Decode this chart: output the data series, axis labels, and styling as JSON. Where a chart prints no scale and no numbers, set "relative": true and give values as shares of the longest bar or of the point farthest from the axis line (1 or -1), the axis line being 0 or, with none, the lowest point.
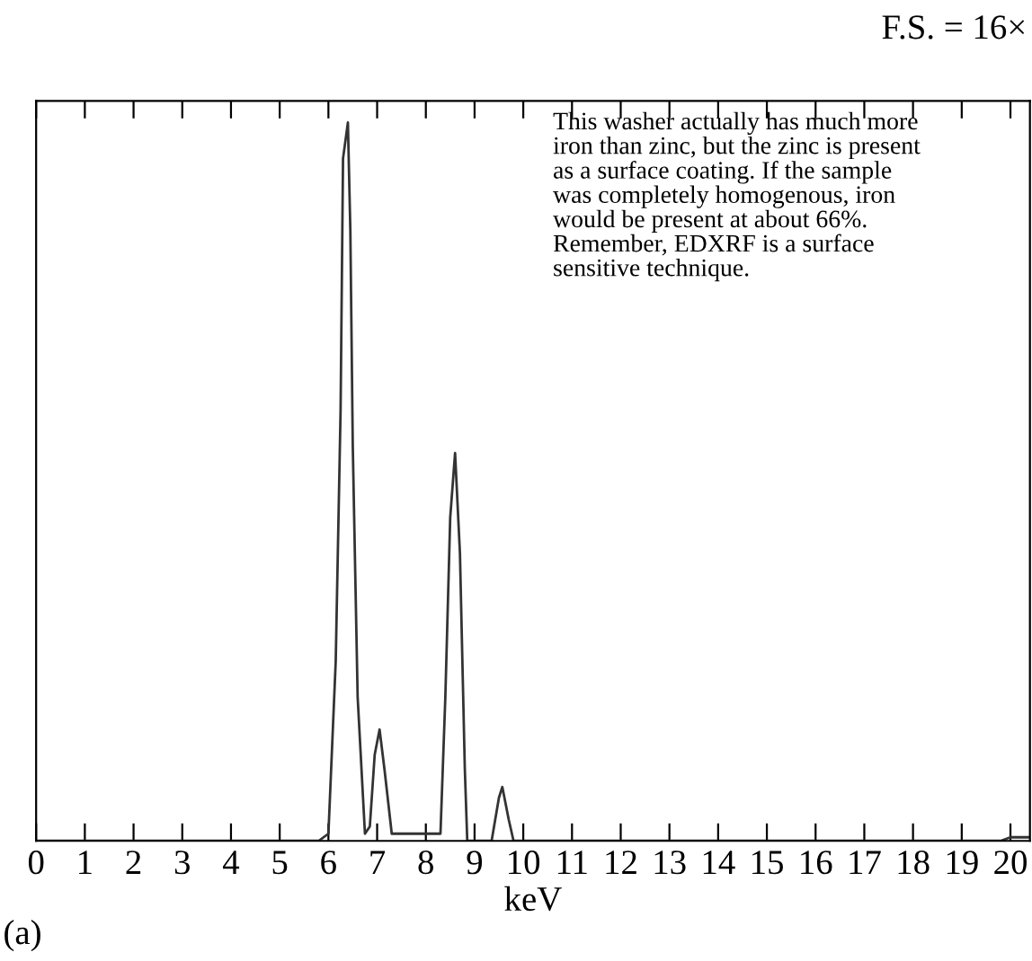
{
  "chart_data": {
    "type": "line",
    "relative": true,
    "xlabel": "keV",
    "color": "#333333",
    "x": [
      0,
      5.8,
      6.0,
      6.15,
      6.25,
      6.3,
      6.4,
      6.45,
      6.5,
      6.6,
      6.75,
      6.85,
      6.95,
      7.05,
      7.15,
      7.3,
      8.3,
      8.4,
      8.5,
      8.6,
      8.7,
      8.8,
      8.85,
      9.35,
      9.5,
      9.57,
      9.7,
      9.8,
      19.8,
      20.0,
      20.4
    ],
    "values": [
      0,
      0,
      0.01,
      0.25,
      0.6,
      0.95,
      1.0,
      0.85,
      0.55,
      0.2,
      0.01,
      0.02,
      0.12,
      0.155,
      0.1,
      0.01,
      0.01,
      0.2,
      0.45,
      0.54,
      0.4,
      0.1,
      0,
      0,
      0.06,
      0.075,
      0.03,
      0,
      0,
      0.005,
      0.005
    ],
    "xlim": [
      0,
      20.4
    ],
    "xticks": [
      0,
      1,
      2,
      3,
      4,
      5,
      6,
      7,
      8,
      9,
      10,
      11,
      12,
      13,
      14,
      15,
      16,
      17,
      18,
      19,
      20
    ],
    "annotations": [
      "F.S. = 16×",
      "This washer actually has much more iron than zinc, but the zinc is present as a surface coating. If the sample was completely homogenous, iron would be present at about 66%. Remember, EDXRF is a surface sensitive technique.",
      "(a)"
    ]
  }
}
